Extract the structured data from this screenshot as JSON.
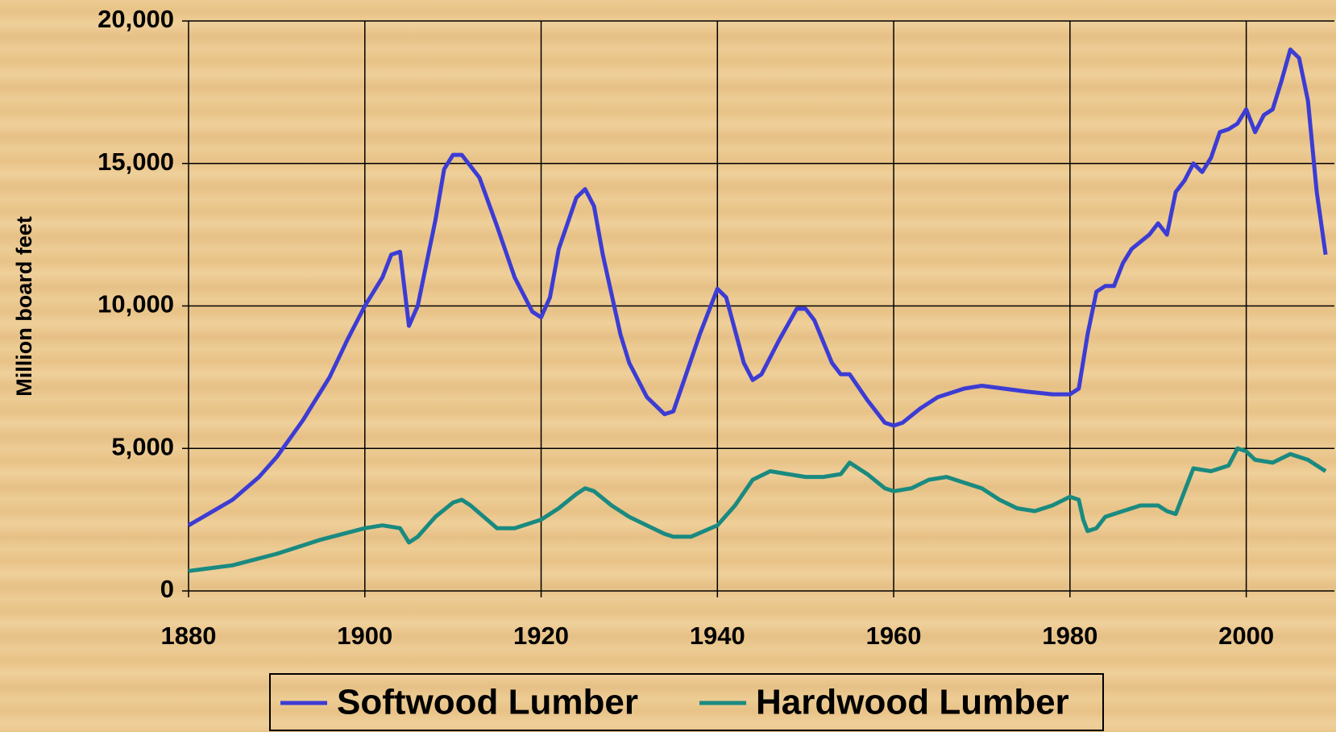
{
  "chart_data": {
    "type": "line",
    "y_label": "Million board feet",
    "xlim": [
      1880,
      2010
    ],
    "xticks": [
      1880,
      1900,
      1920,
      1940,
      1960,
      1980,
      2000
    ],
    "ylim": [
      0,
      20000
    ],
    "yticks": [
      {
        "value": 0,
        "label": "0"
      },
      {
        "value": 5000,
        "label": "5,000"
      },
      {
        "value": 10000,
        "label": "10,000"
      },
      {
        "value": 15000,
        "label": "15,000"
      },
      {
        "value": 20000,
        "label": "20,000"
      }
    ],
    "grid": true,
    "legend": "bottom",
    "series": [
      {
        "name": "Softwood Lumber",
        "color": "#3c3cd4",
        "x": [
          1880,
          1885,
          1888,
          1890,
          1893,
          1896,
          1898,
          1900,
          1902,
          1903,
          1904,
          1905,
          1906,
          1907,
          1908,
          1909,
          1910,
          1911,
          1913,
          1915,
          1917,
          1919,
          1920,
          1921,
          1922,
          1924,
          1925,
          1926,
          1927,
          1929,
          1930,
          1932,
          1934,
          1935,
          1936,
          1938,
          1940,
          1941,
          1943,
          1944,
          1945,
          1947,
          1949,
          1950,
          1951,
          1953,
          1954,
          1955,
          1957,
          1959,
          1960,
          1961,
          1963,
          1965,
          1968,
          1970,
          1975,
          1978,
          1980,
          1981,
          1982,
          1983,
          1984,
          1985,
          1986,
          1987,
          1989,
          1990,
          1991,
          1992,
          1993,
          1994,
          1995,
          1996,
          1997,
          1998,
          1999,
          2000,
          2001,
          2002,
          2003,
          2004,
          2005,
          2006,
          2007,
          2008,
          2009
        ],
        "values": [
          2300,
          3200,
          4000,
          4700,
          6000,
          7500,
          8800,
          10000,
          11000,
          11800,
          11900,
          9300,
          10000,
          11500,
          13000,
          14800,
          15300,
          15300,
          14500,
          12800,
          11000,
          9800,
          9600,
          10300,
          12000,
          13800,
          14100,
          13500,
          11800,
          9000,
          8000,
          6800,
          6200,
          6300,
          7200,
          9000,
          10600,
          10300,
          8000,
          7400,
          7600,
          8800,
          9900,
          9900,
          9500,
          8000,
          7600,
          7600,
          6700,
          5900,
          5800,
          5900,
          6400,
          6800,
          7100,
          7200,
          7000,
          6900,
          6900,
          7100,
          9000,
          10500,
          10700,
          10700,
          11500,
          12000,
          12500,
          12900,
          12500,
          14000,
          14400,
          15000,
          14700,
          15200,
          16100,
          16200,
          16400,
          16900,
          16100,
          16700,
          16900,
          17900,
          19000,
          18700,
          17200,
          14000,
          11800
        ]
      },
      {
        "name": "Hardwood Lumber",
        "color": "#1a8a80",
        "x": [
          1880,
          1885,
          1890,
          1895,
          1900,
          1902,
          1904,
          1905,
          1906,
          1908,
          1910,
          1911,
          1912,
          1915,
          1917,
          1920,
          1922,
          1924,
          1925,
          1926,
          1928,
          1930,
          1932,
          1934,
          1935,
          1937,
          1940,
          1942,
          1944,
          1946,
          1948,
          1950,
          1952,
          1954,
          1955,
          1957,
          1959,
          1960,
          1962,
          1964,
          1966,
          1968,
          1970,
          1972,
          1974,
          1976,
          1978,
          1980,
          1981,
          1981.5,
          1982,
          1983,
          1984,
          1986,
          1988,
          1990,
          1991,
          1992,
          1993,
          1994,
          1996,
          1998,
          1999,
          2000,
          2001,
          2003,
          2005,
          2007,
          2009
        ],
        "values": [
          700,
          900,
          1300,
          1800,
          2200,
          2300,
          2200,
          1700,
          1900,
          2600,
          3100,
          3200,
          3000,
          2200,
          2200,
          2500,
          2900,
          3400,
          3600,
          3500,
          3000,
          2600,
          2300,
          2000,
          1900,
          1900,
          2300,
          3000,
          3900,
          4200,
          4100,
          4000,
          4000,
          4100,
          4500,
          4100,
          3600,
          3500,
          3600,
          3900,
          4000,
          3800,
          3600,
          3200,
          2900,
          2800,
          3000,
          3300,
          3200,
          2500,
          2100,
          2200,
          2600,
          2800,
          3000,
          3000,
          2800,
          2700,
          3500,
          4300,
          4200,
          4400,
          5000,
          4900,
          4600,
          4500,
          4800,
          4600,
          4200
        ]
      }
    ]
  }
}
